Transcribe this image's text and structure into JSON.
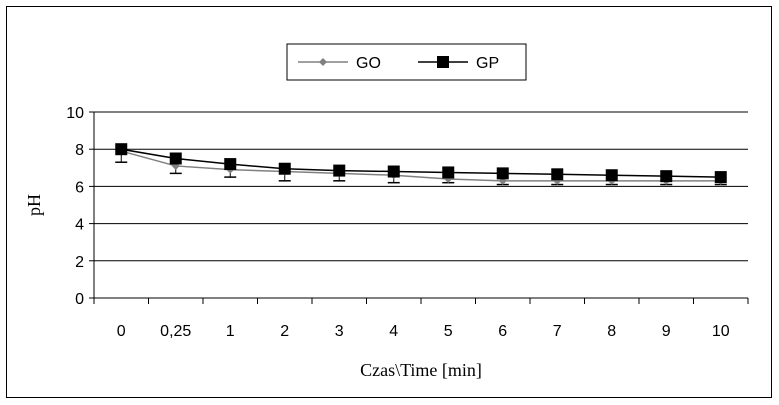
{
  "chart_data": {
    "type": "line",
    "title": "",
    "xlabel": "Czas\\Time [min]",
    "ylabel": "pH",
    "categories": [
      "0",
      "0,25",
      "1",
      "2",
      "3",
      "4",
      "5",
      "6",
      "7",
      "8",
      "9",
      "10"
    ],
    "yticks": [
      "0",
      "2",
      "4",
      "6",
      "8",
      "10"
    ],
    "ylim": [
      0,
      10
    ],
    "grid": true,
    "legend_position": "top-center",
    "series": [
      {
        "name": "GO",
        "color": "#808080",
        "marker": "diamond",
        "values": [
          7.9,
          7.1,
          6.9,
          6.8,
          6.7,
          6.6,
          6.4,
          6.3,
          6.3,
          6.3,
          6.3,
          6.3
        ],
        "error": [
          0.6,
          0.4,
          0.4,
          0.5,
          0.4,
          0.4,
          0.2,
          0.2,
          0.2,
          0.2,
          0.2,
          0.2
        ]
      },
      {
        "name": "GP",
        "color": "#000000",
        "marker": "square",
        "values": [
          8.0,
          7.5,
          7.2,
          6.95,
          6.85,
          6.8,
          6.75,
          6.7,
          6.65,
          6.6,
          6.55,
          6.5
        ]
      }
    ]
  }
}
